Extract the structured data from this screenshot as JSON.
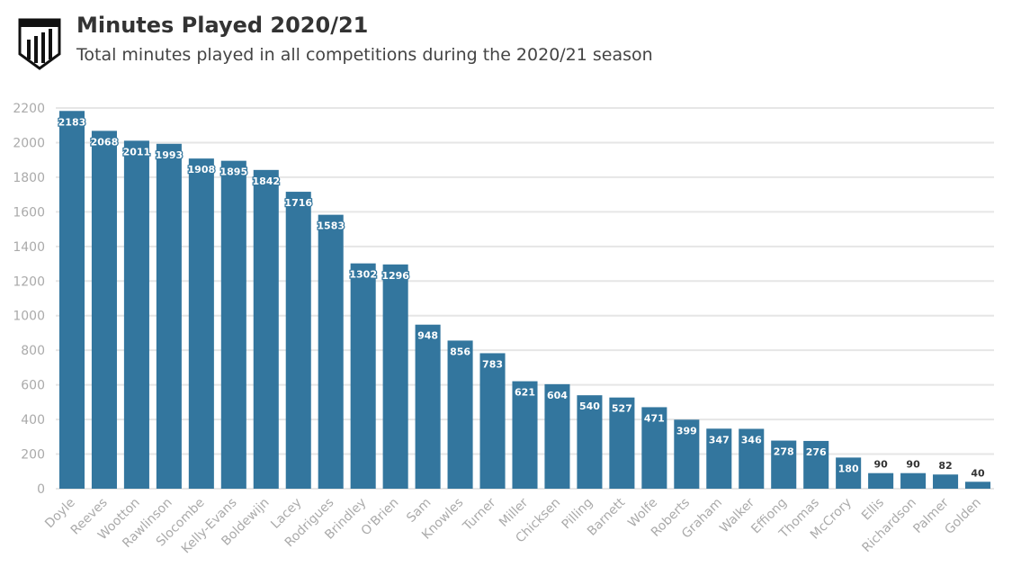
{
  "header": {
    "title": "Minutes Played 2020/21",
    "subtitle": "Total minutes played in all competitions during the 2020/21 season",
    "logo_text": "NOTTS COUNTY STATS"
  },
  "chart_data": {
    "type": "bar",
    "title": "Minutes Played 2020/21",
    "subtitle": "Total minutes played in all competitions during the 2020/21 season",
    "categories": [
      "Doyle",
      "Reeves",
      "Wootton",
      "Rawlinson",
      "Slocombe",
      "Kelly-Evans",
      "Boldewijn",
      "Lacey",
      "Rodrigues",
      "Brindley",
      "O'Brien",
      "Sam",
      "Knowles",
      "Turner",
      "Miller",
      "Chicksen",
      "Pilling",
      "Barnett",
      "Wolfe",
      "Roberts",
      "Graham",
      "Walker",
      "Effiong",
      "Thomas",
      "McCrory",
      "Ellis",
      "Richardson",
      "Palmer",
      "Golden"
    ],
    "values": [
      2183,
      2068,
      2011,
      1993,
      1908,
      1895,
      1842,
      1716,
      1583,
      1302,
      1296,
      948,
      856,
      783,
      621,
      604,
      540,
      527,
      471,
      399,
      347,
      346,
      278,
      276,
      180,
      90,
      90,
      82,
      40
    ],
    "ylim": [
      0,
      2200
    ],
    "yticks": [
      0,
      200,
      400,
      600,
      800,
      1000,
      1200,
      1400,
      1600,
      1800,
      2000,
      2200
    ],
    "grid": true,
    "bar_color": "#33769e",
    "xlabel": "",
    "ylabel": ""
  }
}
